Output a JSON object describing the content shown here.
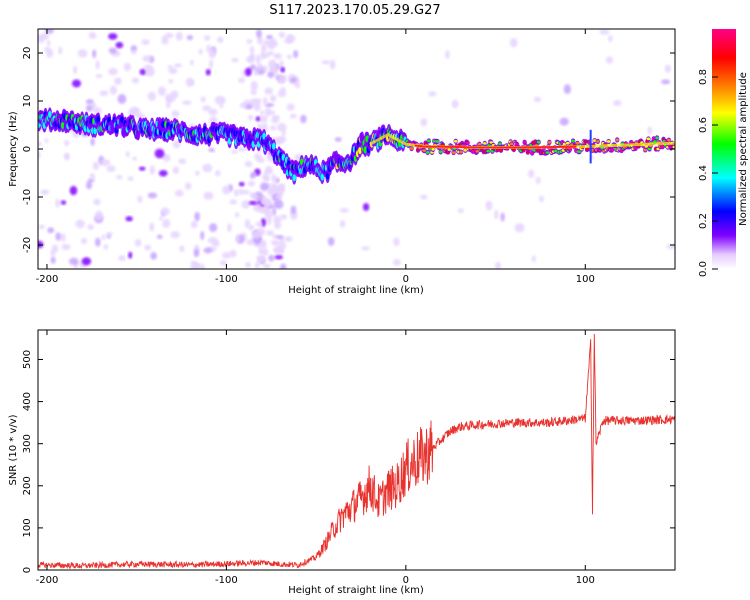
{
  "title": "S117.2023.170.05.29.G27",
  "chart_data": [
    {
      "type": "heatmap",
      "xlabel": "Height of straight line (km)",
      "ylabel": "Frequency (Hz)",
      "xlim": [
        -205,
        150
      ],
      "ylim": [
        -25,
        25
      ],
      "xticks": [
        -200,
        -100,
        0,
        100
      ],
      "yticks": [
        -20,
        -10,
        0,
        10,
        20
      ],
      "colorbar": {
        "label": "Normalized spectral amplitude",
        "range": [
          0,
          1
        ],
        "ticks": [
          "0.0",
          "0.2",
          "0.4",
          "0.6",
          "0.8"
        ],
        "colormap": [
          "#ffffff",
          "#e6ccff",
          "#7f00ff",
          "#0000ff",
          "#00ffff",
          "#00ff00",
          "#ffff00",
          "#ff7f00",
          "#ff0000",
          "#ff0088"
        ]
      },
      "ridge": {
        "x": [
          -205,
          -190,
          -175,
          -160,
          -145,
          -130,
          -115,
          -100,
          -90,
          -80,
          -72,
          -68,
          -62,
          -55,
          -50,
          -45,
          -40,
          -35,
          -30,
          -25,
          -20,
          -15,
          -10,
          -5,
          0,
          10,
          20,
          40,
          60,
          80,
          100,
          120,
          150
        ],
        "y": [
          6,
          6,
          5,
          5,
          4,
          4,
          3,
          3,
          2,
          2,
          -1,
          -3,
          -5,
          -3,
          -4,
          -5,
          -3,
          -3,
          -2,
          1,
          1,
          2,
          3,
          2,
          1,
          0.5,
          0.5,
          0.3,
          0.3,
          0.4,
          0.5,
          0.8,
          1.2
        ]
      }
    },
    {
      "type": "line",
      "xlabel": "Height of straight line (km)",
      "ylabel": "SNR (10 * v/v)",
      "xlim": [
        -205,
        150
      ],
      "ylim": [
        0,
        570
      ],
      "xticks": [
        -200,
        -100,
        0,
        100
      ],
      "yticks": [
        0,
        100,
        200,
        300,
        400,
        500
      ],
      "color": "#e8322e",
      "series": [
        {
          "x": [
            -205,
            -180,
            -150,
            -120,
            -90,
            -80,
            -70,
            -60,
            -50,
            -45,
            -40,
            -35,
            -30,
            -25,
            -20,
            -15,
            -10,
            -5,
            0,
            5,
            10,
            15,
            20,
            25,
            30,
            40,
            60,
            80,
            100,
            103,
            104,
            105,
            106,
            110,
            130,
            150
          ],
          "y": [
            12,
            10,
            14,
            12,
            16,
            18,
            14,
            12,
            30,
            60,
            100,
            130,
            150,
            170,
            200,
            160,
            190,
            200,
            240,
            260,
            270,
            290,
            310,
            330,
            340,
            345,
            350,
            350,
            360,
            540,
            140,
            560,
            300,
            355,
            355,
            358
          ]
        }
      ]
    }
  ]
}
